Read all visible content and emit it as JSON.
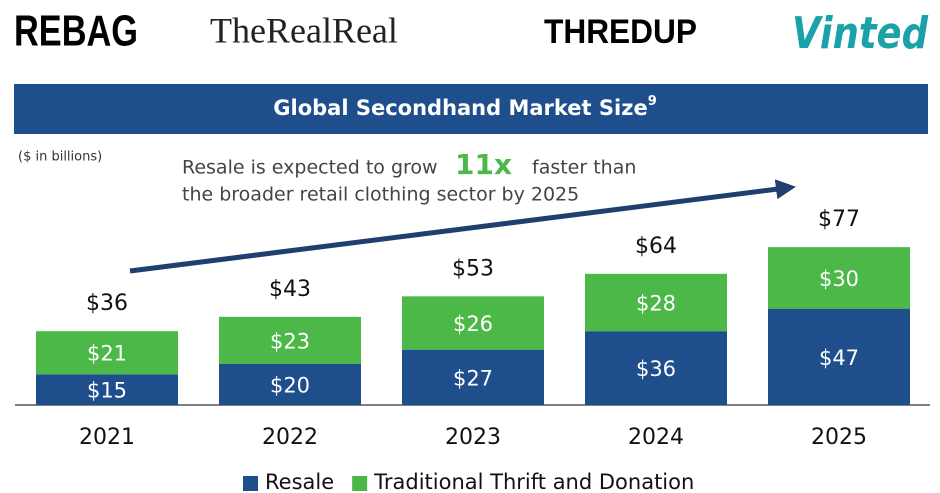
{
  "logos": [
    "REBAG",
    "TheRealReal",
    "THREDUP",
    "Vinted"
  ],
  "chart_data": {
    "type": "stacked_bar",
    "title": "Global Secondhand Market Size",
    "title_footnote": "9",
    "subtitle": "($ in billions)",
    "annotation": {
      "line1": "Resale is expected to grow",
      "highlight": "11x",
      "line1_end": "faster than",
      "line2": "the broader retail clothing sector by 2025"
    },
    "categories": [
      "2021",
      "2022",
      "2023",
      "2024",
      "2025"
    ],
    "series": [
      {
        "name": "Resale",
        "color": "#1f4e8c",
        "values": [
          15,
          20,
          27,
          36,
          47
        ],
        "value_labels": [
          "$15",
          "$20",
          "$27",
          "$36",
          "$47"
        ]
      },
      {
        "name": "Traditional Thrift and Donation",
        "color": "#4cb848",
        "values": [
          21,
          23,
          26,
          28,
          30
        ],
        "value_labels": [
          "$21",
          "$23",
          "$26",
          "$28",
          "$30"
        ]
      }
    ],
    "totals": {
      "values": [
        36,
        43,
        53,
        64,
        77
      ],
      "value_labels": [
        "$36",
        "$43",
        "$53",
        "$64",
        "$77"
      ]
    },
    "ylim": [
      0,
      80
    ]
  }
}
